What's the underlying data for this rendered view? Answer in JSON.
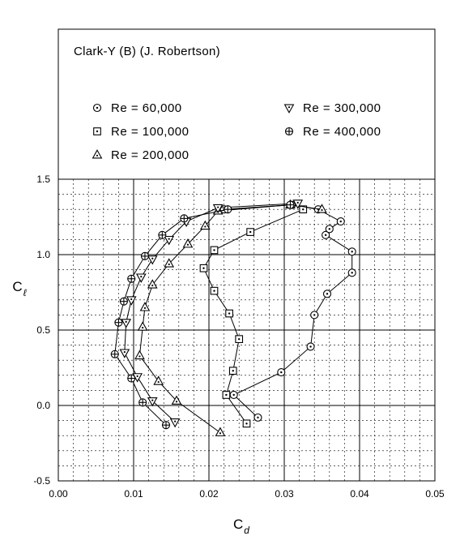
{
  "chart_data": {
    "type": "scatter",
    "title": "Clark-Y (B)  (J. Robertson)",
    "xlabel": "C",
    "xlabel_sub": "d",
    "ylabel": "C",
    "ylabel_sub": "ℓ",
    "xlim": [
      0,
      0.05
    ],
    "ylim": [
      -0.5,
      1.5
    ],
    "xticks": [
      "0.00",
      "0.01",
      "0.02",
      "0.03",
      "0.04",
      "0.05"
    ],
    "yticks": [
      "-0.5",
      "0.0",
      "0.5",
      "1.0",
      "1.5"
    ],
    "grid": true,
    "legend_position": "top",
    "series": [
      {
        "name": "Re = 60,000",
        "marker": "circle-dot",
        "points": [
          [
            0.0265,
            -0.08
          ],
          [
            0.0233,
            0.07
          ],
          [
            0.0296,
            0.22
          ],
          [
            0.0335,
            0.39
          ],
          [
            0.034,
            0.6
          ],
          [
            0.0357,
            0.74
          ],
          [
            0.039,
            0.88
          ],
          [
            0.039,
            1.02
          ],
          [
            0.0355,
            1.13
          ],
          [
            0.036,
            1.17
          ],
          [
            0.0375,
            1.22
          ],
          [
            0.0345,
            1.3
          ],
          [
            0.031,
            1.33
          ],
          [
            0.022,
            1.3
          ]
        ]
      },
      {
        "name": "Re = 100,000",
        "marker": "square-dot",
        "points": [
          [
            0.025,
            -0.12
          ],
          [
            0.0223,
            0.07
          ],
          [
            0.0232,
            0.23
          ],
          [
            0.024,
            0.44
          ],
          [
            0.0227,
            0.61
          ],
          [
            0.0207,
            0.76
          ],
          [
            0.0193,
            0.91
          ],
          [
            0.0207,
            1.03
          ],
          [
            0.0255,
            1.15
          ],
          [
            0.0325,
            1.3
          ]
        ]
      },
      {
        "name": "Re = 200,000",
        "marker": "triangle-up",
        "points": [
          [
            0.0215,
            -0.18
          ],
          [
            0.0157,
            0.03
          ],
          [
            0.0133,
            0.16
          ],
          [
            0.0108,
            0.33
          ],
          [
            0.0112,
            0.52
          ],
          [
            0.0115,
            0.65
          ],
          [
            0.0125,
            0.8
          ],
          [
            0.0147,
            0.94
          ],
          [
            0.0172,
            1.07
          ],
          [
            0.0195,
            1.19
          ],
          [
            0.0212,
            1.29
          ],
          [
            0.0308,
            1.33
          ],
          [
            0.035,
            1.3
          ]
        ]
      },
      {
        "name": "Re = 300,000",
        "marker": "triangle-down",
        "points": [
          [
            0.0155,
            -0.11
          ],
          [
            0.0125,
            0.03
          ],
          [
            0.0105,
            0.19
          ],
          [
            0.0088,
            0.35
          ],
          [
            0.009,
            0.55
          ],
          [
            0.0097,
            0.7
          ],
          [
            0.011,
            0.85
          ],
          [
            0.0125,
            0.97
          ],
          [
            0.0147,
            1.1
          ],
          [
            0.017,
            1.22
          ],
          [
            0.0212,
            1.31
          ],
          [
            0.0318,
            1.34
          ]
        ]
      },
      {
        "name": "Re = 400,000",
        "marker": "circle-plus",
        "points": [
          [
            0.0143,
            -0.13
          ],
          [
            0.0112,
            0.02
          ],
          [
            0.0097,
            0.18
          ],
          [
            0.0075,
            0.34
          ],
          [
            0.008,
            0.55
          ],
          [
            0.0087,
            0.69
          ],
          [
            0.0097,
            0.84
          ],
          [
            0.0115,
            0.99
          ],
          [
            0.0138,
            1.13
          ],
          [
            0.0167,
            1.24
          ],
          [
            0.0225,
            1.3
          ],
          [
            0.0308,
            1.33
          ]
        ]
      }
    ]
  }
}
